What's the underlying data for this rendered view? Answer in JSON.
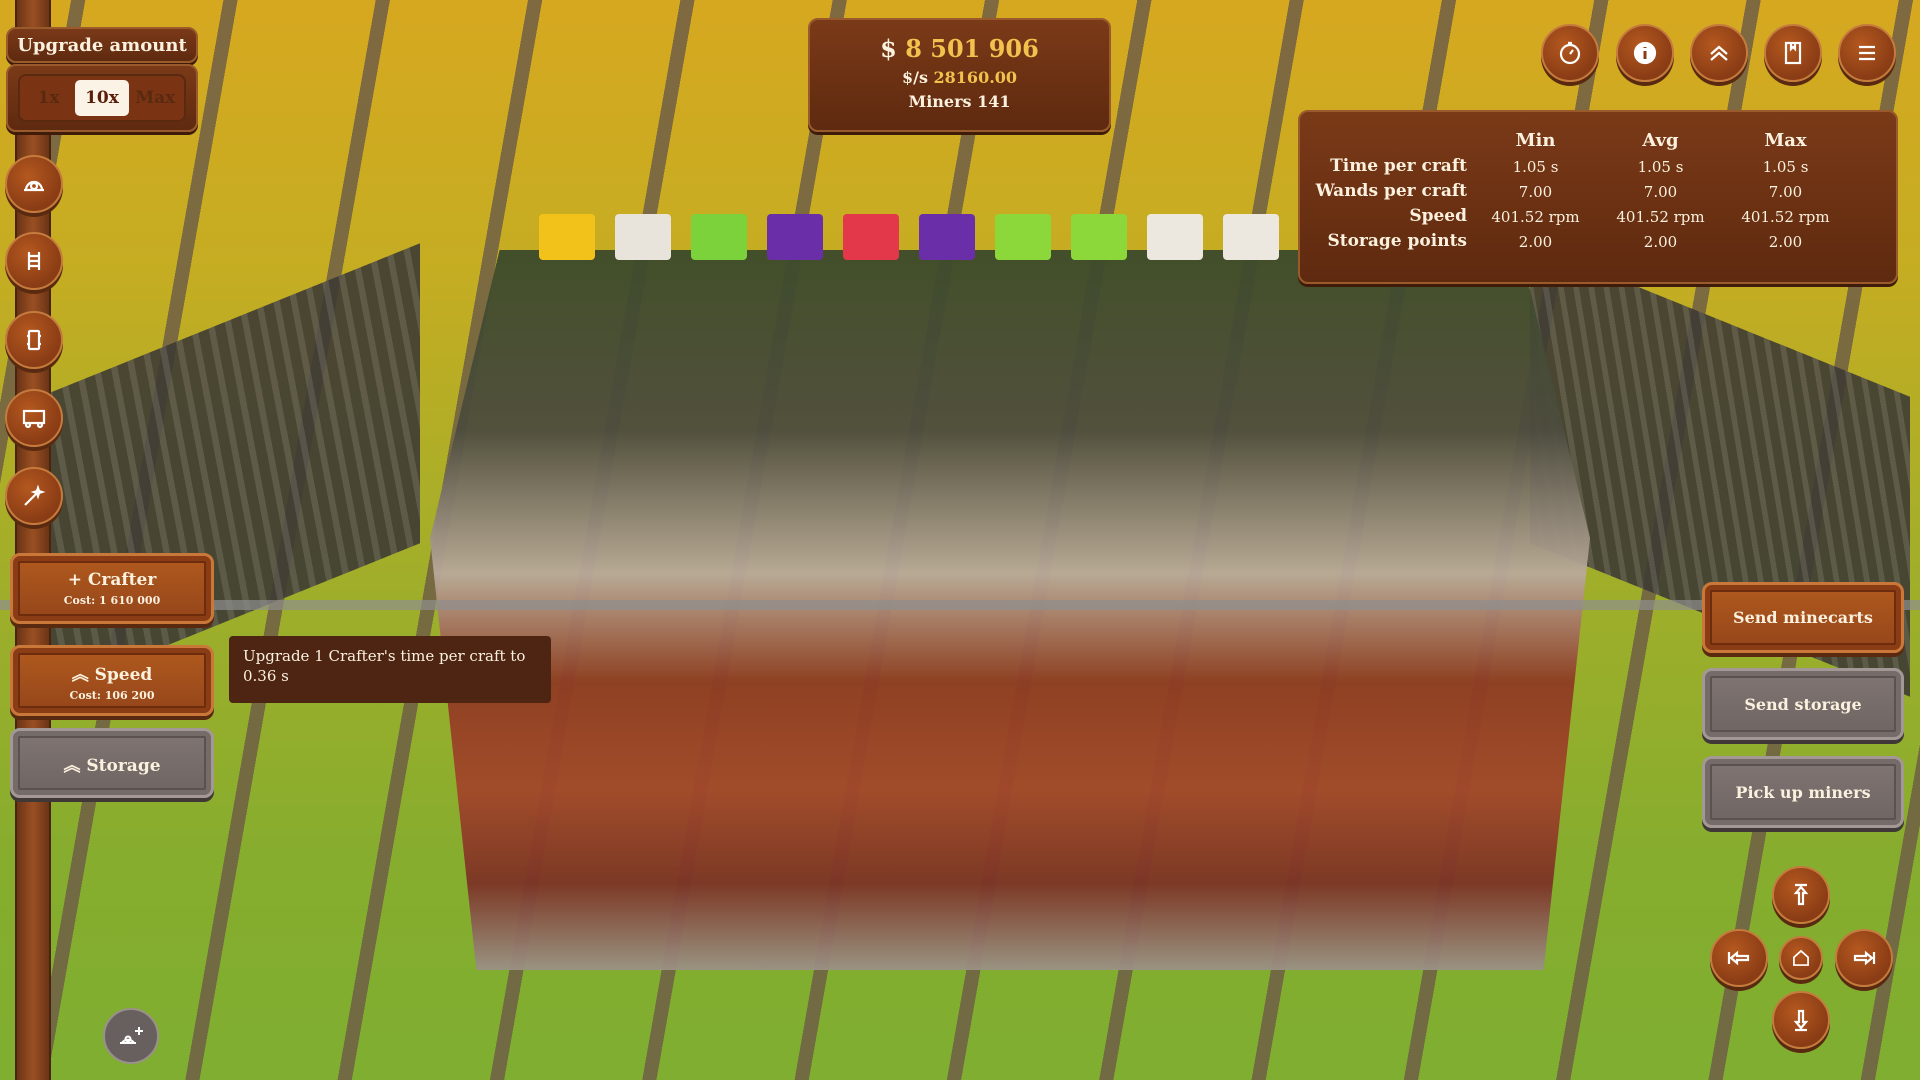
{
  "upgrade_amount": {
    "title": "Upgrade amount",
    "options": [
      "1x",
      "10x",
      "Max"
    ],
    "selected": "10x"
  },
  "stats_header": {
    "money_symbol": "$",
    "money": "8 501 906",
    "rate_label": "$/s",
    "rate": "28160.00",
    "miners_label": "Miners",
    "miners": "141"
  },
  "left_nav": [
    "miner-helmet-icon",
    "rails-icon",
    "storage-icon",
    "minecart-icon",
    "magic-wand-icon"
  ],
  "upgrades": [
    {
      "icon": "plus-icon",
      "label": "Crafter",
      "cost": "Cost: 1 610 000",
      "style": "orange"
    },
    {
      "icon": "double-chevron-up-icon",
      "label": "Speed",
      "cost": "Cost: 106 200",
      "style": "orange"
    },
    {
      "icon": "double-chevron-up-icon",
      "label": "Storage",
      "style": "grey"
    }
  ],
  "tooltip": "Upgrade 1 Crafter's time per craft to 0.36 s",
  "top_right_buttons": [
    "stopwatch-icon",
    "info-icon",
    "double-chevron-up-icon",
    "book-icon",
    "menu-icon"
  ],
  "info_table": {
    "columns": [
      "Min",
      "Avg",
      "Max"
    ],
    "rows": [
      {
        "label": "Time per craft",
        "values": [
          "1.05 s",
          "1.05 s",
          "1.05 s"
        ]
      },
      {
        "label": "Wands per craft",
        "values": [
          "7.00",
          "7.00",
          "7.00"
        ]
      },
      {
        "label": "Speed",
        "values": [
          "401.52 rpm",
          "401.52 rpm",
          "401.52 rpm"
        ]
      },
      {
        "label": "Storage points",
        "values": [
          "2.00",
          "2.00",
          "2.00"
        ]
      }
    ]
  },
  "actions": [
    {
      "label": "Send minecarts",
      "style": "orange"
    },
    {
      "label": "Send storage",
      "style": "grey"
    },
    {
      "label": "Pick up miners",
      "style": "grey"
    }
  ],
  "camera": [
    "arrow-up-to-top-icon",
    "arrow-left-to-edge-icon",
    "home-icon",
    "arrow-right-to-edge-icon",
    "arrow-down-to-bottom-icon"
  ],
  "add_miner_icon": "add-miner-icon",
  "colors": {
    "wood": "#8a3c15",
    "money": "#f2c24e",
    "grey_button": "#756b69"
  },
  "block_colors": [
    "#f2c21a",
    "#e8e4dc",
    "#7cd23a",
    "#6a2fa8",
    "#e2384a",
    "#6a2fa8",
    "#8cd83a",
    "#8cd83a",
    "#ece8e0",
    "#ece8e0"
  ]
}
